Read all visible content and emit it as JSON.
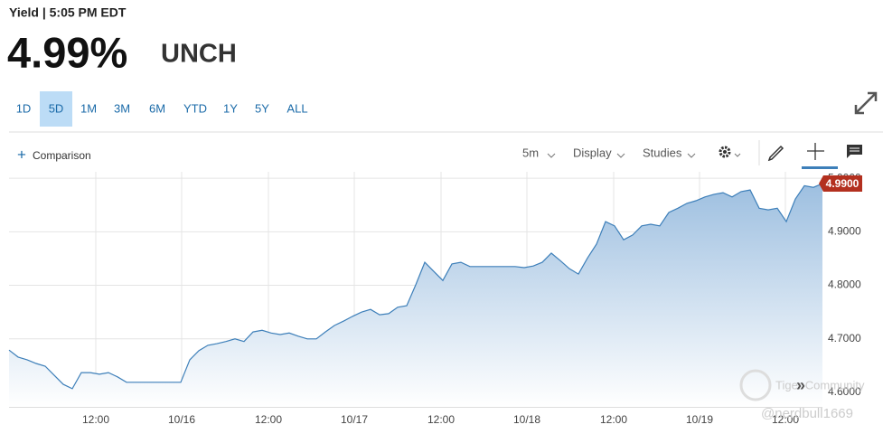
{
  "header": {
    "label": "Yield | 5:05 PM EDT",
    "value": "4.99%",
    "change": "UNCH"
  },
  "ranges": [
    "1D",
    "5D",
    "1M",
    "3M",
    "6M",
    "YTD",
    "1Y",
    "5Y",
    "ALL"
  ],
  "active_range": 1,
  "toolbar": {
    "comparison": "Comparison",
    "interval": "5m",
    "display": "Display",
    "studies": "Studies"
  },
  "chart_data": {
    "type": "area",
    "color": "#3d7fb9",
    "values": [
      4.679,
      4.666,
      4.661,
      4.654,
      4.649,
      4.632,
      4.615,
      4.607,
      4.637,
      4.637,
      4.634,
      4.637,
      4.629,
      4.619,
      4.619,
      4.619,
      4.619,
      4.619,
      4.619,
      4.619,
      4.661,
      4.678,
      4.688,
      4.691,
      4.695,
      4.7,
      4.695,
      4.713,
      4.716,
      4.711,
      4.708,
      4.711,
      4.705,
      4.7,
      4.7,
      4.713,
      4.725,
      4.733,
      4.742,
      4.75,
      4.755,
      4.745,
      4.747,
      4.759,
      4.762,
      4.801,
      4.843,
      4.826,
      4.809,
      4.84,
      4.843,
      4.835,
      4.835,
      4.835,
      4.835,
      4.835,
      4.835,
      4.833,
      4.836,
      4.843,
      4.86,
      4.846,
      4.831,
      4.821,
      4.851,
      4.877,
      4.919,
      4.911,
      4.885,
      4.894,
      4.911,
      4.914,
      4.911,
      4.936,
      4.944,
      4.953,
      4.958,
      4.965,
      4.97,
      4.973,
      4.965,
      4.975,
      4.978,
      4.944,
      4.941,
      4.944,
      4.919,
      4.961,
      4.986,
      4.983,
      4.99
    ],
    "xlim": [
      0,
      90
    ],
    "xticks": [
      {
        "value": 9.6,
        "label": "12:00"
      },
      {
        "value": 19.1,
        "label": "10/16"
      },
      {
        "value": 28.7,
        "label": "12:00"
      },
      {
        "value": 38.2,
        "label": "10/17"
      },
      {
        "value": 47.8,
        "label": "12:00"
      },
      {
        "value": 57.3,
        "label": "10/18"
      },
      {
        "value": 66.9,
        "label": "12:00"
      },
      {
        "value": 76.4,
        "label": "10/19"
      },
      {
        "value": 85.9,
        "label": "12:00"
      }
    ],
    "ylim": [
      4.573,
      5.012
    ],
    "yticks": [
      {
        "value": 4.6,
        "label": "4.6000"
      },
      {
        "value": 4.7,
        "label": "4.7000"
      },
      {
        "value": 4.8,
        "label": "4.8000"
      },
      {
        "value": 4.9,
        "label": "4.9000"
      },
      {
        "value": 5.0,
        "label": "5.0000"
      }
    ],
    "last_price": {
      "value": 4.99,
      "label": "4.9900"
    },
    "grid": true,
    "watermark": {
      "brand": "Tiger Community",
      "user": "@nerdbull1669"
    }
  }
}
